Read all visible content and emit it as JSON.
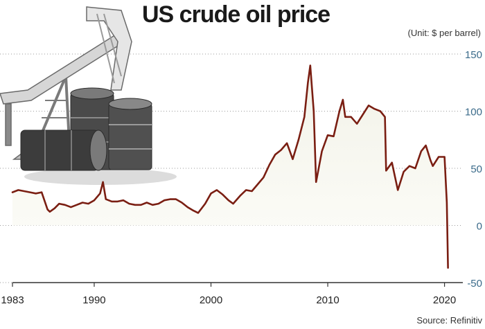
{
  "chart_data": {
    "type": "line",
    "title": "US crude oil price",
    "unit": "(Unit: $ per barrel)",
    "source": "Source: Refinitiv",
    "xlim": [
      1983,
      2020.5
    ],
    "ylim": [
      -50,
      150
    ],
    "x_ticks": [
      1983,
      1990,
      2000,
      2010,
      2020
    ],
    "y_ticks": [
      150,
      100,
      50,
      0,
      -50
    ],
    "grid": "horizontal-dotted",
    "series": [
      {
        "color": "#7a1e12",
        "x": [
          1983,
          1983.5,
          1984,
          1984.5,
          1985,
          1985.5,
          1986,
          1986.2,
          1986.6,
          1987,
          1987.5,
          1988,
          1988.5,
          1989,
          1989.5,
          1990,
          1990.5,
          1990.75,
          1991,
          1991.5,
          1992,
          1992.5,
          1993,
          1993.5,
          1994,
          1994.5,
          1995,
          1995.5,
          1996,
          1996.5,
          1997,
          1997.5,
          1998,
          1998.5,
          1998.9,
          1999.5,
          2000,
          2000.5,
          2001,
          2001.5,
          2001.9,
          2002.5,
          2003,
          2003.5,
          2004,
          2004.5,
          2005,
          2005.5,
          2006,
          2006.5,
          2007,
          2007.5,
          2008,
          2008.3,
          2008.5,
          2008.8,
          2009,
          2009.5,
          2010,
          2010.5,
          2011,
          2011.3,
          2011.5,
          2012,
          2012.5,
          2013,
          2013.5,
          2014,
          2014.5,
          2014.9,
          2015,
          2015.5,
          2016,
          2016.5,
          2017,
          2017.5,
          2018,
          2018.4,
          2018.8,
          2019,
          2019.5,
          2020,
          2020.2,
          2020.3
        ],
        "y": [
          29,
          31,
          30,
          29,
          28,
          29,
          14,
          12,
          15,
          19,
          18,
          16,
          18,
          20,
          19,
          22,
          28,
          38,
          23,
          21,
          21,
          22,
          19,
          18,
          18,
          20,
          18,
          19,
          22,
          23,
          23,
          20,
          16,
          13,
          11,
          19,
          28,
          31,
          27,
          22,
          19,
          26,
          31,
          30,
          36,
          42,
          53,
          62,
          66,
          72,
          58,
          75,
          95,
          125,
          140,
          100,
          38,
          65,
          79,
          78,
          100,
          110,
          95,
          95,
          89,
          97,
          105,
          102,
          100,
          95,
          48,
          55,
          31,
          47,
          52,
          50,
          65,
          70,
          57,
          52,
          60,
          60,
          20,
          -37
        ]
      }
    ]
  }
}
